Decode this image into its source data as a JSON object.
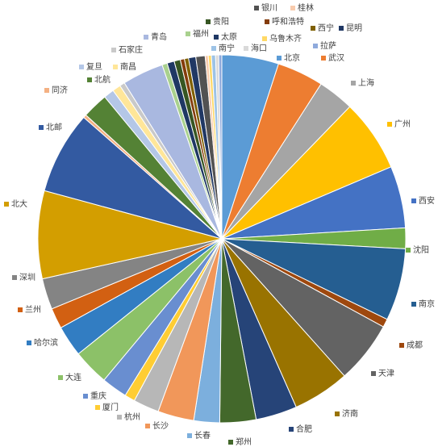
{
  "chart_data": {
    "type": "pie",
    "categories": [
      "北京",
      "武汉",
      "上海",
      "广州",
      "西安",
      "沈阳",
      "南京",
      "成都",
      "天津",
      "济南",
      "合肥",
      "郑州",
      "长春",
      "长沙",
      "杭州",
      "厦门",
      "重庆",
      "大连",
      "哈尔滨",
      "兰州",
      "深圳",
      "北大",
      "北邮",
      "同济",
      "北航",
      "复旦",
      "南昌",
      "石家庄",
      "青岛",
      "福州",
      "太原",
      "贵阳",
      "呼和浩特",
      "西宁",
      "昆明",
      "银川",
      "桂林",
      "乌鲁木齐",
      "南宁",
      "海口",
      "拉萨"
    ],
    "values": [
      5.5,
      4.5,
      3.5,
      7,
      6,
      2,
      7,
      0.8,
      6,
      5.5,
      4,
      3.5,
      2.5,
      3.5,
      2.5,
      1,
      2.5,
      3.5,
      3,
      2,
      3,
      8.5,
      8,
      0.3,
      2.5,
      1,
      0.8,
      0.5,
      4,
      0.5,
      0.7,
      0.6,
      0.4,
      0.4,
      0.7,
      0.9,
      0.3,
      0.3,
      0.4,
      0.3,
      0.3
    ],
    "colors": [
      "#5b9bd5",
      "#ed7d31",
      "#a5a5a5",
      "#ffc000",
      "#4472c4",
      "#70ad47",
      "#255e91",
      "#9e480e",
      "#636363",
      "#997300",
      "#264478",
      "#43682b",
      "#7cafdd",
      "#f1975a",
      "#b7b7b7",
      "#ffcd33",
      "#698ed0",
      "#8cc168",
      "#327dc2",
      "#d26012",
      "#848484",
      "#d39e00",
      "#335aa1",
      "#f4b183",
      "#548235",
      "#b4c7e7",
      "#ffe699",
      "#c9c9c9",
      "#a9b8e0",
      "#a9d18e",
      "#1f3864",
      "#375623",
      "#843c0c",
      "#7f6000",
      "#203864",
      "#525252",
      "#f8cbad",
      "#ffd966",
      "#9dc3e6",
      "#d9d9d9",
      "#8faadc"
    ]
  }
}
